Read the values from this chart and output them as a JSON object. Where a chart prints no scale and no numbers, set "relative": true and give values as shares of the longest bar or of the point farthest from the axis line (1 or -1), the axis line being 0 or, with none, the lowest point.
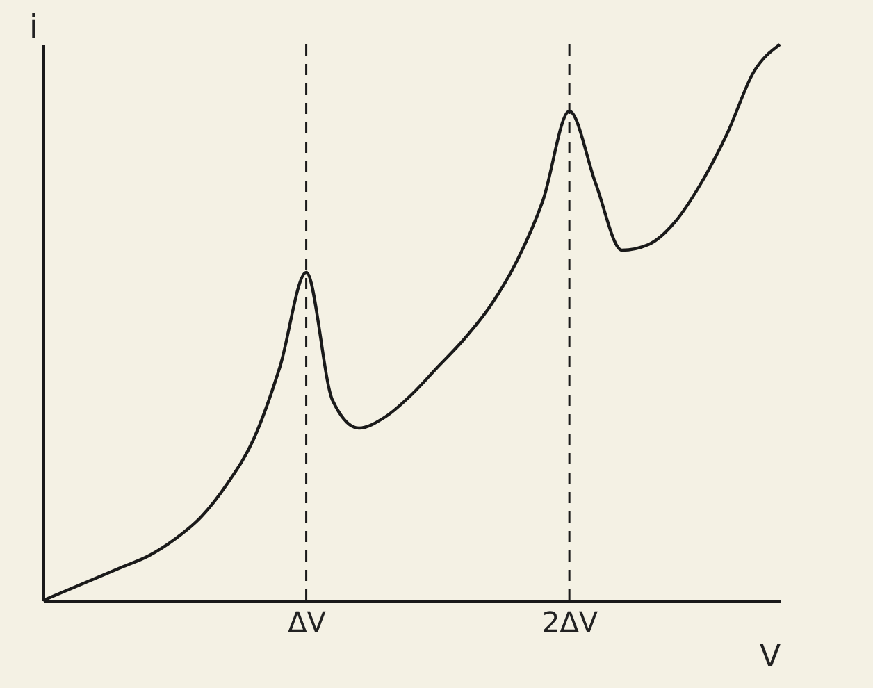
{
  "chart_data": {
    "type": "line",
    "relative": true,
    "xlabel": "V",
    "ylabel": "i",
    "categories": [
      null,
      null,
      null,
      null,
      null,
      null,
      null,
      null,
      null,
      null,
      "ΔV",
      null,
      null,
      null,
      null,
      null,
      null,
      null,
      null,
      null,
      "2ΔV",
      null,
      null,
      null,
      null,
      null,
      null,
      null,
      null
    ],
    "series": [
      {
        "color": "#1a1a1a",
        "values": [
          0,
          0.02,
          0.04,
          0.06,
          0.08,
          0.11,
          0.15,
          0.21,
          0.29,
          0.42,
          0.59,
          0.36,
          0.31,
          0.33,
          0.37,
          0.42,
          0.47,
          0.53,
          0.61,
          0.72,
          0.88,
          0.75,
          0.63,
          0.64,
          0.68,
          0.75,
          0.84,
          0.95,
          1.0
        ]
      }
    ],
    "ref_lines": [
      {
        "axis": "x",
        "value": "ΔV",
        "line_style": "dashed"
      },
      {
        "axis": "x",
        "value": "2ΔV",
        "line_style": "dashed"
      }
    ],
    "grid": false,
    "marker": "none",
    "line_style": "solid"
  }
}
